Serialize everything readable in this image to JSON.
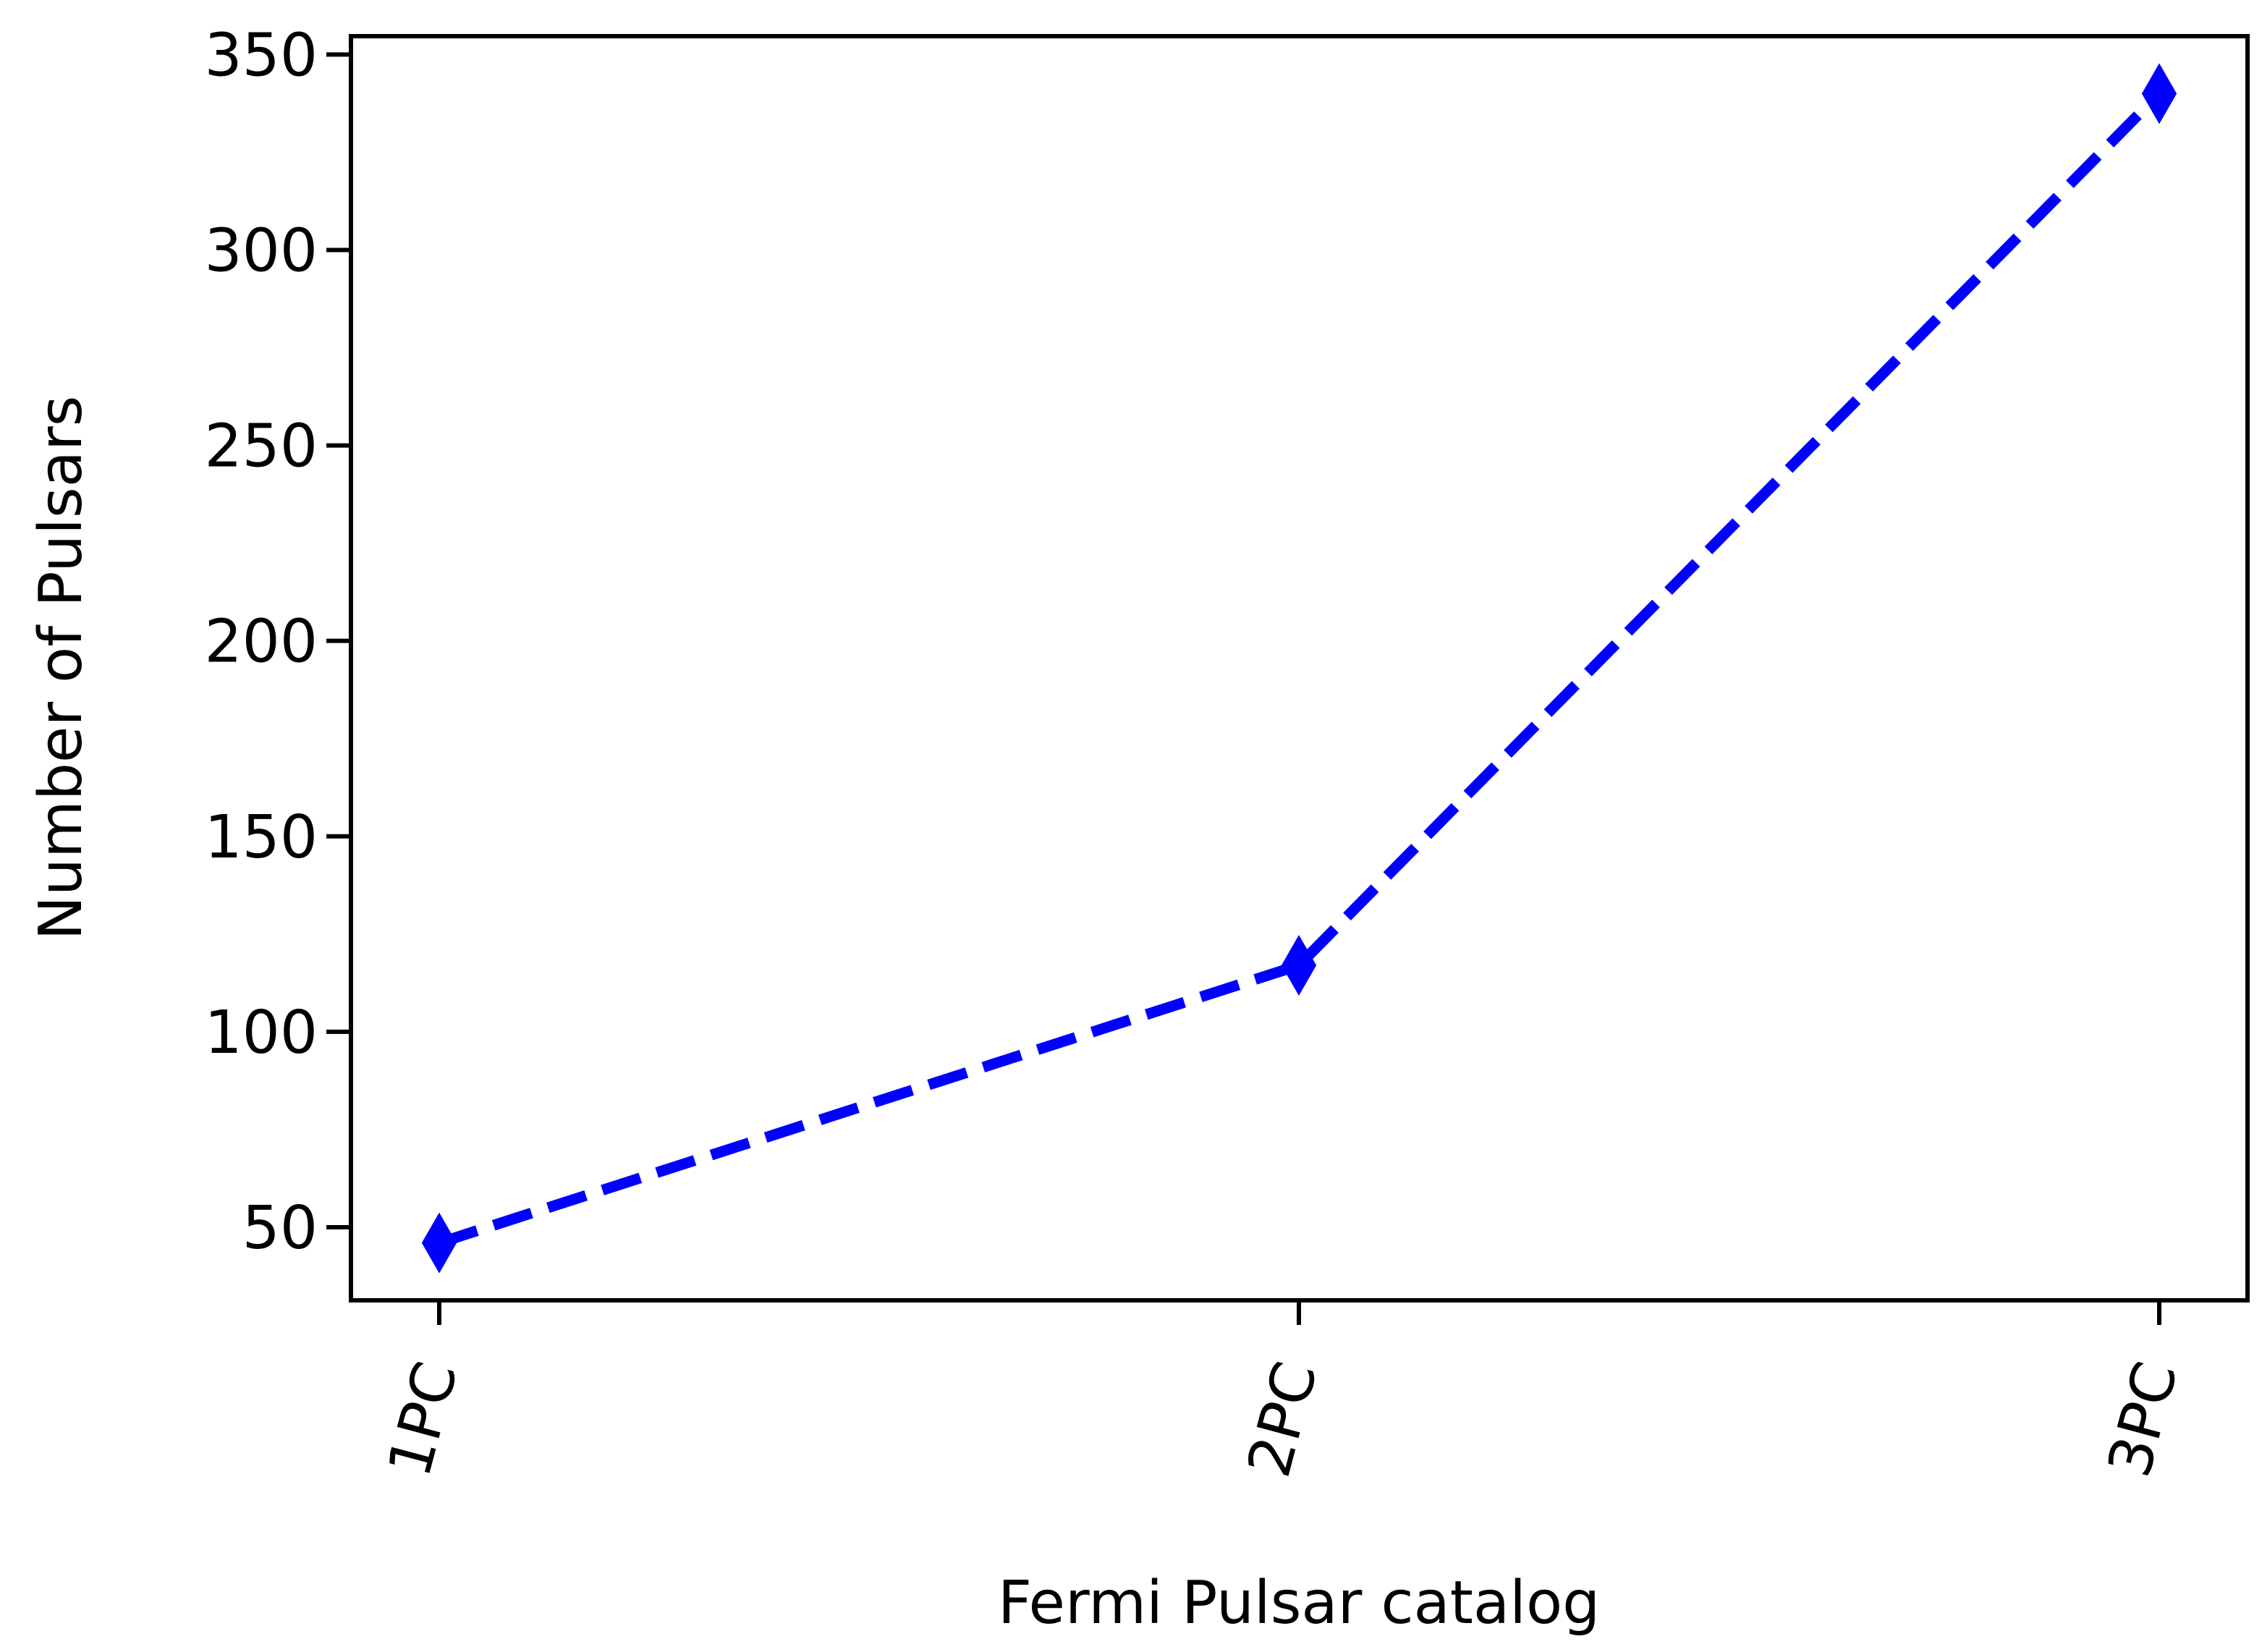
{
  "chart_data": {
    "type": "line",
    "title": "",
    "xlabel": "Fermi Pulsar catalog",
    "ylabel": "Number of Pulsars",
    "categories": [
      "1PC",
      "2PC",
      "3PC"
    ],
    "series": [
      {
        "values": [
          46,
          117,
          340
        ],
        "color": "#0000ff",
        "line_style": "dashed",
        "marker": "thin-diamond"
      }
    ],
    "yticks": [
      50,
      100,
      150,
      200,
      250,
      300,
      350
    ],
    "ylim": [
      31.3,
      354.7
    ],
    "grid": false,
    "legend": "none",
    "xtick_rotation": 75
  }
}
